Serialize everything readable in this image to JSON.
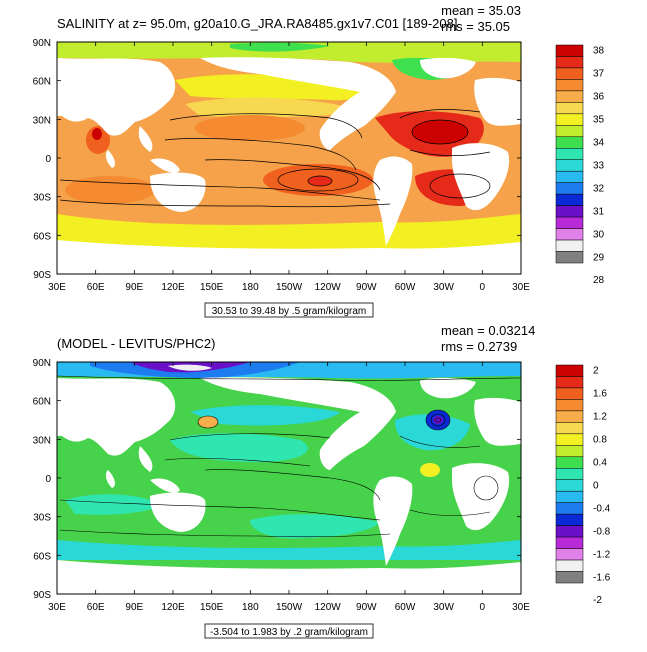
{
  "chart_data": [
    {
      "type": "heatmap",
      "title": "SALINITY at z=  95.0m, g20a10.G_JRA.RA8485.gx1v7.C01 [189-208]",
      "mean_label": "mean = 35.03",
      "rms_label": "rms = 35.05",
      "range_label": "30.53 to 39.48 by .5 gram/kilogram",
      "x_ticks": [
        "30E",
        "60E",
        "90E",
        "120E",
        "150E",
        "180",
        "150W",
        "120W",
        "90W",
        "60W",
        "30W",
        "0",
        "30E"
      ],
      "y_ticks": [
        "90N",
        "60N",
        "30N",
        "0",
        "30S",
        "60S",
        "90S"
      ],
      "colorbar_labels": [
        "38",
        "37",
        "36",
        "35",
        "34",
        "33",
        "32",
        "31",
        "30",
        "29",
        "28"
      ],
      "colorbar_colors": [
        "#cc0000",
        "#e62a1a",
        "#f0601e",
        "#f58a30",
        "#f7ae4a",
        "#f8d850",
        "#f2f022",
        "#c2ec2e",
        "#3ee050",
        "#30e6b0",
        "#2ad8d8",
        "#28baf0",
        "#1c7cf0",
        "#0a2ad8",
        "#6a10c8",
        "#b82ad8",
        "#e080e8",
        "#f0f0f0",
        "#808080"
      ],
      "colors": {
        "ocean_bg": "#f5a24a",
        "land": "#ffffff"
      }
    },
    {
      "type": "heatmap",
      "title": "(MODEL - LEVITUS/PHC2)",
      "mean_label": "mean = 0.03214",
      "rms_label": "rms = 0.2739",
      "range_label": "-3.504 to 1.983 by .2 gram/kilogram",
      "x_ticks": [
        "30E",
        "60E",
        "90E",
        "120E",
        "150E",
        "180",
        "150W",
        "120W",
        "90W",
        "60W",
        "30W",
        "0",
        "30E"
      ],
      "y_ticks": [
        "90N",
        "60N",
        "30N",
        "0",
        "30S",
        "60S",
        "90S"
      ],
      "colorbar_labels": [
        "2",
        "1.6",
        "1.2",
        "0.8",
        "0.4",
        "0",
        "-0.4",
        "-0.8",
        "-1.2",
        "-1.6",
        "-2"
      ],
      "colorbar_colors": [
        "#cc0000",
        "#e62a1a",
        "#f0601e",
        "#f58a30",
        "#f7ae4a",
        "#f8d850",
        "#f2f022",
        "#c2ec2e",
        "#3ee050",
        "#30e6b0",
        "#2ad8d8",
        "#28baf0",
        "#1c7cf0",
        "#0a2ad8",
        "#6a10c8",
        "#b82ad8",
        "#e080e8",
        "#f0f0f0",
        "#808080"
      ],
      "colors": {
        "ocean_bg": "#46d24a",
        "land": "#ffffff"
      }
    }
  ]
}
